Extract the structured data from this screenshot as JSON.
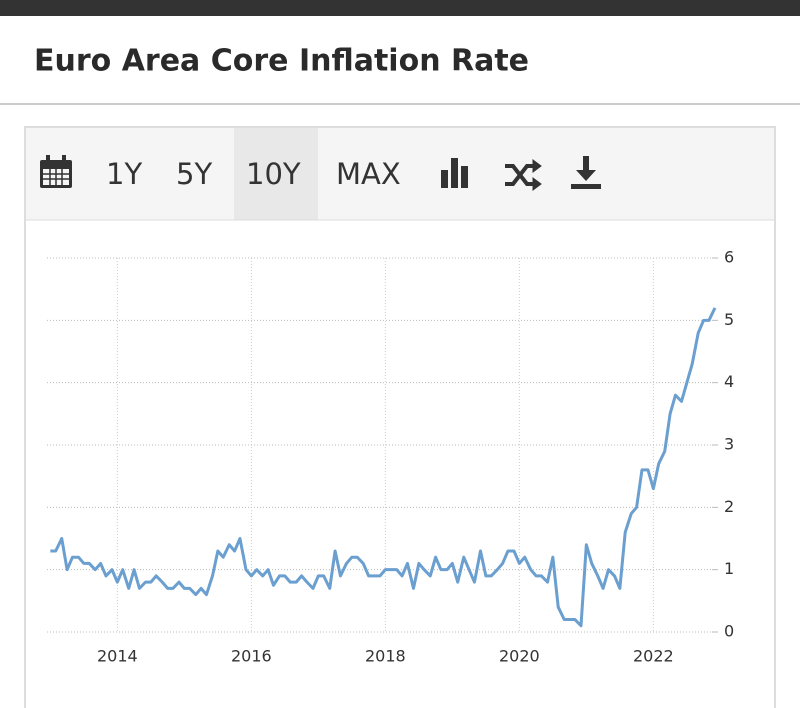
{
  "header": {
    "title": "Euro Area Core Inflation Rate"
  },
  "toolbar": {
    "buttons": [
      "1Y",
      "5Y",
      "10Y",
      "MAX"
    ]
  },
  "chart_data": {
    "type": "line",
    "x": [
      2013.0,
      2013.08,
      2013.17,
      2013.25,
      2013.33,
      2013.42,
      2013.5,
      2013.58,
      2013.67,
      2013.75,
      2013.83,
      2013.92,
      2014.0,
      2014.08,
      2014.17,
      2014.25,
      2014.33,
      2014.42,
      2014.5,
      2014.58,
      2014.67,
      2014.75,
      2014.83,
      2014.92,
      2015.0,
      2015.08,
      2015.17,
      2015.25,
      2015.33,
      2015.42,
      2015.5,
      2015.58,
      2015.67,
      2015.75,
      2015.83,
      2015.92,
      2016.0,
      2016.08,
      2016.17,
      2016.25,
      2016.33,
      2016.42,
      2016.5,
      2016.58,
      2016.67,
      2016.75,
      2016.83,
      2016.92,
      2017.0,
      2017.08,
      2017.17,
      2017.25,
      2017.33,
      2017.42,
      2017.5,
      2017.58,
      2017.67,
      2017.75,
      2017.83,
      2017.92,
      2018.0,
      2018.08,
      2018.17,
      2018.25,
      2018.33,
      2018.42,
      2018.5,
      2018.58,
      2018.67,
      2018.75,
      2018.83,
      2018.92,
      2019.0,
      2019.08,
      2019.17,
      2019.25,
      2019.33,
      2019.42,
      2019.5,
      2019.58,
      2019.67,
      2019.75,
      2019.83,
      2019.92,
      2020.0,
      2020.08,
      2020.17,
      2020.25,
      2020.33,
      2020.42,
      2020.5,
      2020.58,
      2020.67,
      2020.75,
      2020.83,
      2020.92,
      2021.0,
      2021.08,
      2021.17,
      2021.25,
      2021.33,
      2021.42,
      2021.5,
      2021.58,
      2021.67,
      2021.75,
      2021.83,
      2021.92,
      2022.0,
      2022.08,
      2022.17,
      2022.25,
      2022.33,
      2022.42,
      2022.5,
      2022.58,
      2022.67,
      2022.75,
      2022.83,
      2022.92
    ],
    "series": [
      {
        "color": "#6a9fd0",
        "values": [
          1.3,
          1.3,
          1.5,
          1.0,
          1.2,
          1.2,
          1.1,
          1.1,
          1.0,
          1.1,
          0.9,
          1.0,
          0.8,
          1.0,
          0.7,
          1.0,
          0.7,
          0.8,
          0.8,
          0.9,
          0.8,
          0.7,
          0.7,
          0.8,
          0.7,
          0.7,
          0.6,
          0.7,
          0.6,
          0.9,
          1.3,
          1.2,
          1.4,
          1.3,
          1.5,
          1.0,
          0.9,
          1.0,
          0.9,
          1.0,
          0.75,
          0.9,
          0.9,
          0.8,
          0.8,
          0.9,
          0.8,
          0.7,
          0.9,
          0.9,
          0.7,
          1.3,
          0.9,
          1.1,
          1.2,
          1.2,
          1.1,
          0.9,
          0.9,
          0.9,
          1.0,
          1.0,
          1.0,
          0.9,
          1.1,
          0.7,
          1.1,
          1.0,
          0.9,
          1.2,
          1.0,
          1.0,
          1.1,
          0.8,
          1.2,
          1.0,
          0.8,
          1.3,
          0.9,
          0.9,
          1.0,
          1.1,
          1.3,
          1.3,
          1.1,
          1.2,
          1.0,
          0.9,
          0.9,
          0.8,
          1.2,
          0.4,
          0.2,
          0.2,
          0.2,
          0.1,
          1.4,
          1.1,
          0.9,
          0.7,
          1.0,
          0.9,
          0.7,
          1.6,
          1.9,
          2.0,
          2.6,
          2.6,
          2.3,
          2.7,
          2.9,
          3.5,
          3.8,
          3.7,
          4.0,
          4.3,
          4.8,
          5.0,
          5.0,
          5.2
        ]
      }
    ],
    "xlim": [
      2012.95,
      2022.95
    ],
    "xticks": [
      2014,
      2016,
      2018,
      2020,
      2022
    ],
    "ylim": [
      0,
      6
    ],
    "yticks": [
      0,
      1,
      2,
      3,
      4,
      5,
      6
    ],
    "grid": true
  }
}
